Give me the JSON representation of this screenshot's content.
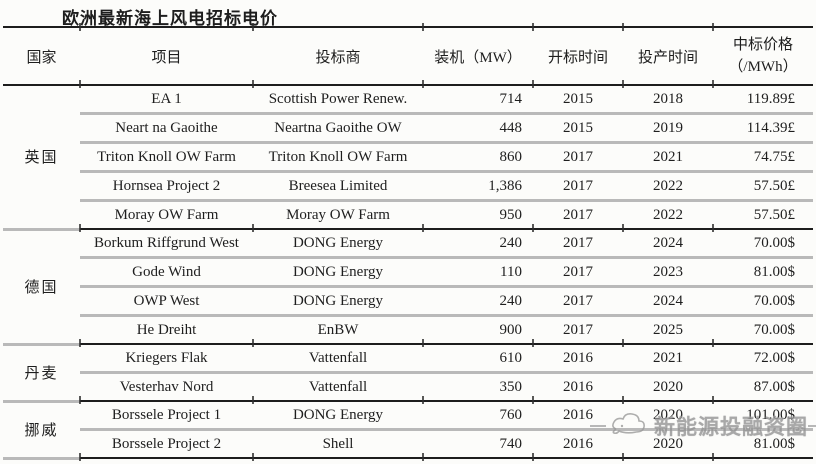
{
  "title": "欧洲最新海上风电招标电价",
  "table": {
    "header": {
      "country": "国家",
      "project": "项目",
      "bidder": "投标商",
      "capacity": "装机（MW）",
      "bid_time": "开标时间",
      "production_time": "投产时间",
      "price_line1": "中标价格",
      "price_line2": "（/MWh）"
    },
    "groups": [
      {
        "country": "英国",
        "rows": [
          {
            "project": "EA 1",
            "bidder": "Scottish Power Renew.",
            "capacity_mw": "714",
            "bid_year": "2015",
            "production_year": "2018",
            "price": "119.89£"
          },
          {
            "project": "Neart na Gaoithe",
            "bidder": "Neartna Gaoithe OW",
            "capacity_mw": "448",
            "bid_year": "2015",
            "production_year": "2019",
            "price": "114.39£"
          },
          {
            "project": "Triton Knoll OW Farm",
            "bidder": "Triton Knoll OW Farm",
            "capacity_mw": "860",
            "bid_year": "2017",
            "production_year": "2021",
            "price": "74.75£"
          },
          {
            "project": "Hornsea Project 2",
            "bidder": "Breesea Limited",
            "capacity_mw": "1,386",
            "bid_year": "2017",
            "production_year": "2022",
            "price": "57.50£"
          },
          {
            "project": "Moray OW Farm",
            "bidder": "Moray OW Farm",
            "capacity_mw": "950",
            "bid_year": "2017",
            "production_year": "2022",
            "price": "57.50£"
          }
        ]
      },
      {
        "country": "德国",
        "rows": [
          {
            "project": "Borkum Riffgrund West",
            "bidder": "DONG Energy",
            "capacity_mw": "240",
            "bid_year": "2017",
            "production_year": "2024",
            "price": "70.00$"
          },
          {
            "project": "Gode Wind",
            "bidder": "DONG Energy",
            "capacity_mw": "110",
            "bid_year": "2017",
            "production_year": "2023",
            "price": "81.00$"
          },
          {
            "project": "OWP West",
            "bidder": "DONG Energy",
            "capacity_mw": "240",
            "bid_year": "2017",
            "production_year": "2024",
            "price": "70.00$"
          },
          {
            "project": "He Dreiht",
            "bidder": "EnBW",
            "capacity_mw": "900",
            "bid_year": "2017",
            "production_year": "2025",
            "price": "70.00$"
          }
        ]
      },
      {
        "country": "丹麦",
        "rows": [
          {
            "project": "Kriegers Flak",
            "bidder": "Vattenfall",
            "capacity_mw": "610",
            "bid_year": "2016",
            "production_year": "2021",
            "price": "72.00$"
          },
          {
            "project": "Vesterhav Nord",
            "bidder": "Vattenfall",
            "capacity_mw": "350",
            "bid_year": "2016",
            "production_year": "2020",
            "price": "87.00$"
          }
        ]
      },
      {
        "country": "挪威",
        "rows": [
          {
            "project": "Borssele Project 1",
            "bidder": "DONG Energy",
            "capacity_mw": "760",
            "bid_year": "2016",
            "production_year": "2020",
            "price": "101.00$"
          },
          {
            "project": "Borssele Project 2",
            "bidder": "Shell",
            "capacity_mw": "740",
            "bid_year": "2016",
            "production_year": "2020",
            "price": "81.00$"
          }
        ]
      }
    ]
  },
  "watermark": {
    "text": "新能源投融资圈"
  },
  "colors": {
    "rule_dark": "#1d1d1d",
    "rule_light": "#b9b9b9",
    "text": "#1e1e1e",
    "watermark_gray": "#979797",
    "background": "#fcfcfa"
  }
}
